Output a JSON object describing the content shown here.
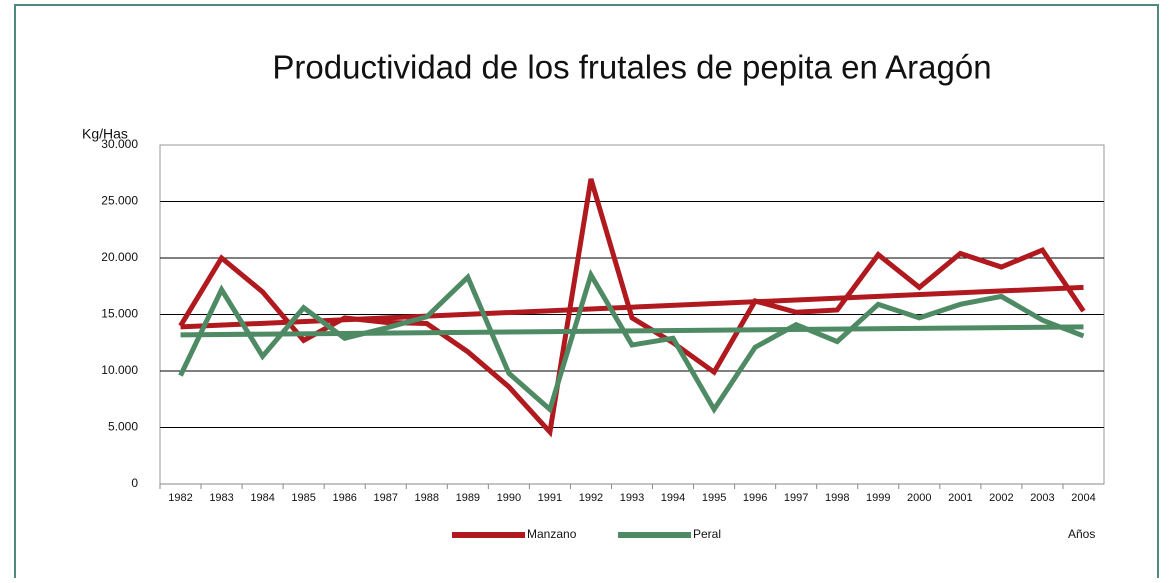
{
  "chart_data": {
    "type": "line",
    "title": "Productividad de los frutales de pepita en Aragón",
    "y_label": "Kg/Has",
    "x_label": "Años",
    "categories": [
      "1982",
      "1983",
      "1984",
      "1985",
      "1986",
      "1987",
      "1988",
      "1989",
      "1990",
      "1991",
      "1992",
      "1993",
      "1994",
      "1995",
      "1996",
      "1997",
      "1998",
      "1999",
      "2000",
      "2001",
      "2002",
      "2003",
      "2004"
    ],
    "series": [
      {
        "name": "Manzano",
        "color": "#b0191e",
        "values": [
          14000,
          20000,
          17000,
          12700,
          14700,
          14300,
          14200,
          11700,
          8600,
          4600,
          27000,
          14700,
          12500,
          9900,
          16200,
          15200,
          15400,
          20300,
          17400,
          20400,
          19200,
          20700,
          15300
        ],
        "trend": [
          13900,
          17400
        ]
      },
      {
        "name": "Peral",
        "color": "#4e8a63",
        "values": [
          9600,
          17200,
          11300,
          15600,
          12900,
          13800,
          14800,
          18300,
          9800,
          6600,
          18500,
          12300,
          12900,
          6600,
          12100,
          14100,
          12600,
          15900,
          14700,
          15900,
          16600,
          14500,
          13100
        ],
        "trend": [
          13200,
          13900
        ]
      }
    ],
    "ylim": [
      0,
      30000
    ],
    "yticks": [
      0,
      {
        "value": 5000,
        "label": "5.000"
      },
      {
        "value": 10000,
        "label": "10.000"
      },
      {
        "value": 15000,
        "label": "15.000"
      },
      {
        "value": 20000,
        "label": "20.000"
      },
      {
        "value": 25000,
        "label": "25.000"
      },
      {
        "value": 30000,
        "label": "30.000"
      }
    ],
    "grid": true,
    "legend": "bottom"
  }
}
